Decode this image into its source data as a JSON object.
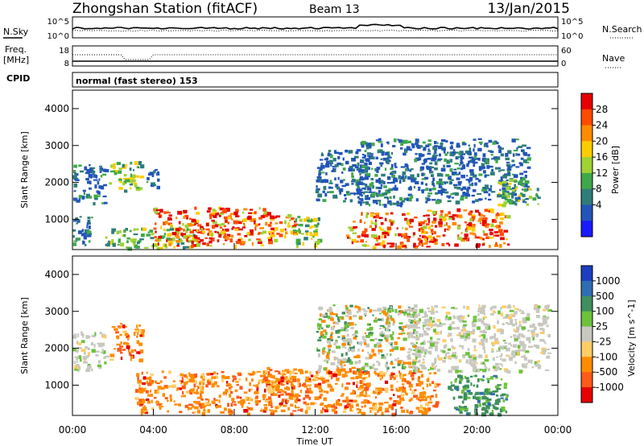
{
  "header": {
    "title": "Zhongshan Station (fitACF)",
    "beam": "Beam 13",
    "date": "13/Jan/2015"
  },
  "noise_panel": {
    "left_label": "N.Sky",
    "right_label": "N.Search",
    "left_ticks": [
      "10^5",
      "10^0"
    ],
    "right_ticks": [
      "10^5",
      "10^0"
    ]
  },
  "freq_panel": {
    "left_label_line1": "Freq.",
    "left_label_line2": "[MHz]",
    "right_label": "Nave",
    "left_ticks": [
      "18",
      "8"
    ],
    "right_ticks": [
      "60",
      "0"
    ]
  },
  "cpid": {
    "label": "CPID",
    "mode": "normal (fast stereo) 153"
  },
  "x_axis": {
    "label": "Time UT",
    "ticks": [
      "00:00",
      "04:00",
      "08:00",
      "12:00",
      "16:00",
      "20:00",
      "00:00"
    ]
  },
  "chart_data": [
    {
      "type": "heatmap",
      "title": "",
      "quantity": "Power",
      "colorbar_label": "Power [dB]",
      "colorbar_ticks": [
        "28",
        "24",
        "20",
        "16",
        "12",
        "8",
        "4"
      ],
      "colorbar_colors": [
        "#e60000",
        "#ff4a00",
        "#ff8c00",
        "#ffcc00",
        "#9fd233",
        "#3fa84a",
        "#2e7d7a",
        "#2255b8",
        "#1a1aff"
      ],
      "xlabel": "Time UT",
      "ylabel": "Slant Range [km]",
      "xlim": [
        0,
        24
      ],
      "ylim": [
        180,
        4500
      ],
      "yticks": [
        "4000",
        "3000",
        "2000",
        "1000"
      ],
      "regions": [
        {
          "t0": 0.0,
          "t1": 1.6,
          "r0": 1450,
          "r1": 2500,
          "level": "low"
        },
        {
          "t0": 0.0,
          "t1": 1.0,
          "r0": 300,
          "r1": 1100,
          "level": "low"
        },
        {
          "t0": 1.8,
          "t1": 3.4,
          "r0": 1800,
          "r1": 2600,
          "level": "mid"
        },
        {
          "t0": 3.6,
          "t1": 4.2,
          "r0": 1900,
          "r1": 2400,
          "level": "low"
        },
        {
          "t0": 1.6,
          "t1": 6.0,
          "r0": 250,
          "r1": 800,
          "level": "mid"
        },
        {
          "t0": 4.0,
          "t1": 9.5,
          "r0": 300,
          "r1": 1350,
          "level": "high"
        },
        {
          "t0": 9.5,
          "t1": 11.0,
          "r0": 400,
          "r1": 1200,
          "level": "high"
        },
        {
          "t0": 10.8,
          "t1": 12.2,
          "r0": 300,
          "r1": 1100,
          "level": "mid"
        },
        {
          "t0": 12.0,
          "t1": 14.5,
          "r0": 1500,
          "r1": 2900,
          "level": "low"
        },
        {
          "t0": 14.0,
          "t1": 16.5,
          "r0": 1400,
          "r1": 3200,
          "level": "low"
        },
        {
          "t0": 13.5,
          "t1": 17.5,
          "r0": 250,
          "r1": 1200,
          "level": "high"
        },
        {
          "t0": 16.5,
          "t1": 22.5,
          "r0": 1500,
          "r1": 3200,
          "level": "low"
        },
        {
          "t0": 17.5,
          "t1": 21.5,
          "r0": 300,
          "r1": 1300,
          "level": "high"
        },
        {
          "t0": 21.0,
          "t1": 23.0,
          "r0": 1400,
          "r1": 2100,
          "level": "mid"
        }
      ]
    },
    {
      "type": "heatmap",
      "title": "",
      "quantity": "Velocity",
      "colorbar_label": "Velocity [m s^-1]",
      "colorbar_ticks": [
        "1000",
        "500",
        "100",
        "25",
        "-25",
        "-100",
        "-500",
        "-1000"
      ],
      "colorbar_colors": [
        "#1a3fbf",
        "#2f6db3",
        "#3f8f5f",
        "#6cc23a",
        "#c8c8c0",
        "#ffcc66",
        "#ff8c00",
        "#ff5a1a",
        "#e60000"
      ],
      "xlabel": "Time UT",
      "ylabel": "Slant Range [km]",
      "xlim": [
        0,
        24
      ],
      "ylim": [
        180,
        4500
      ],
      "yticks": [
        "4000",
        "3000",
        "2000",
        "1000"
      ],
      "regions": [
        {
          "t0": 0.0,
          "t1": 1.6,
          "r0": 1450,
          "r1": 2500,
          "level": "neutral"
        },
        {
          "t0": 1.8,
          "t1": 3.4,
          "r0": 1700,
          "r1": 2700,
          "level": "neg"
        },
        {
          "t0": 3.0,
          "t1": 11.0,
          "r0": 250,
          "r1": 1400,
          "level": "neg"
        },
        {
          "t0": 9.5,
          "t1": 14.5,
          "r0": 300,
          "r1": 1500,
          "level": "neg"
        },
        {
          "t0": 12.0,
          "t1": 17.0,
          "r0": 1400,
          "r1": 3200,
          "level": "mixed"
        },
        {
          "t0": 14.0,
          "t1": 18.0,
          "r0": 250,
          "r1": 1400,
          "level": "neg"
        },
        {
          "t0": 16.5,
          "t1": 23.5,
          "r0": 1400,
          "r1": 3200,
          "level": "neutral"
        },
        {
          "t0": 18.5,
          "t1": 21.5,
          "r0": 250,
          "r1": 1300,
          "level": "pos"
        }
      ]
    }
  ]
}
